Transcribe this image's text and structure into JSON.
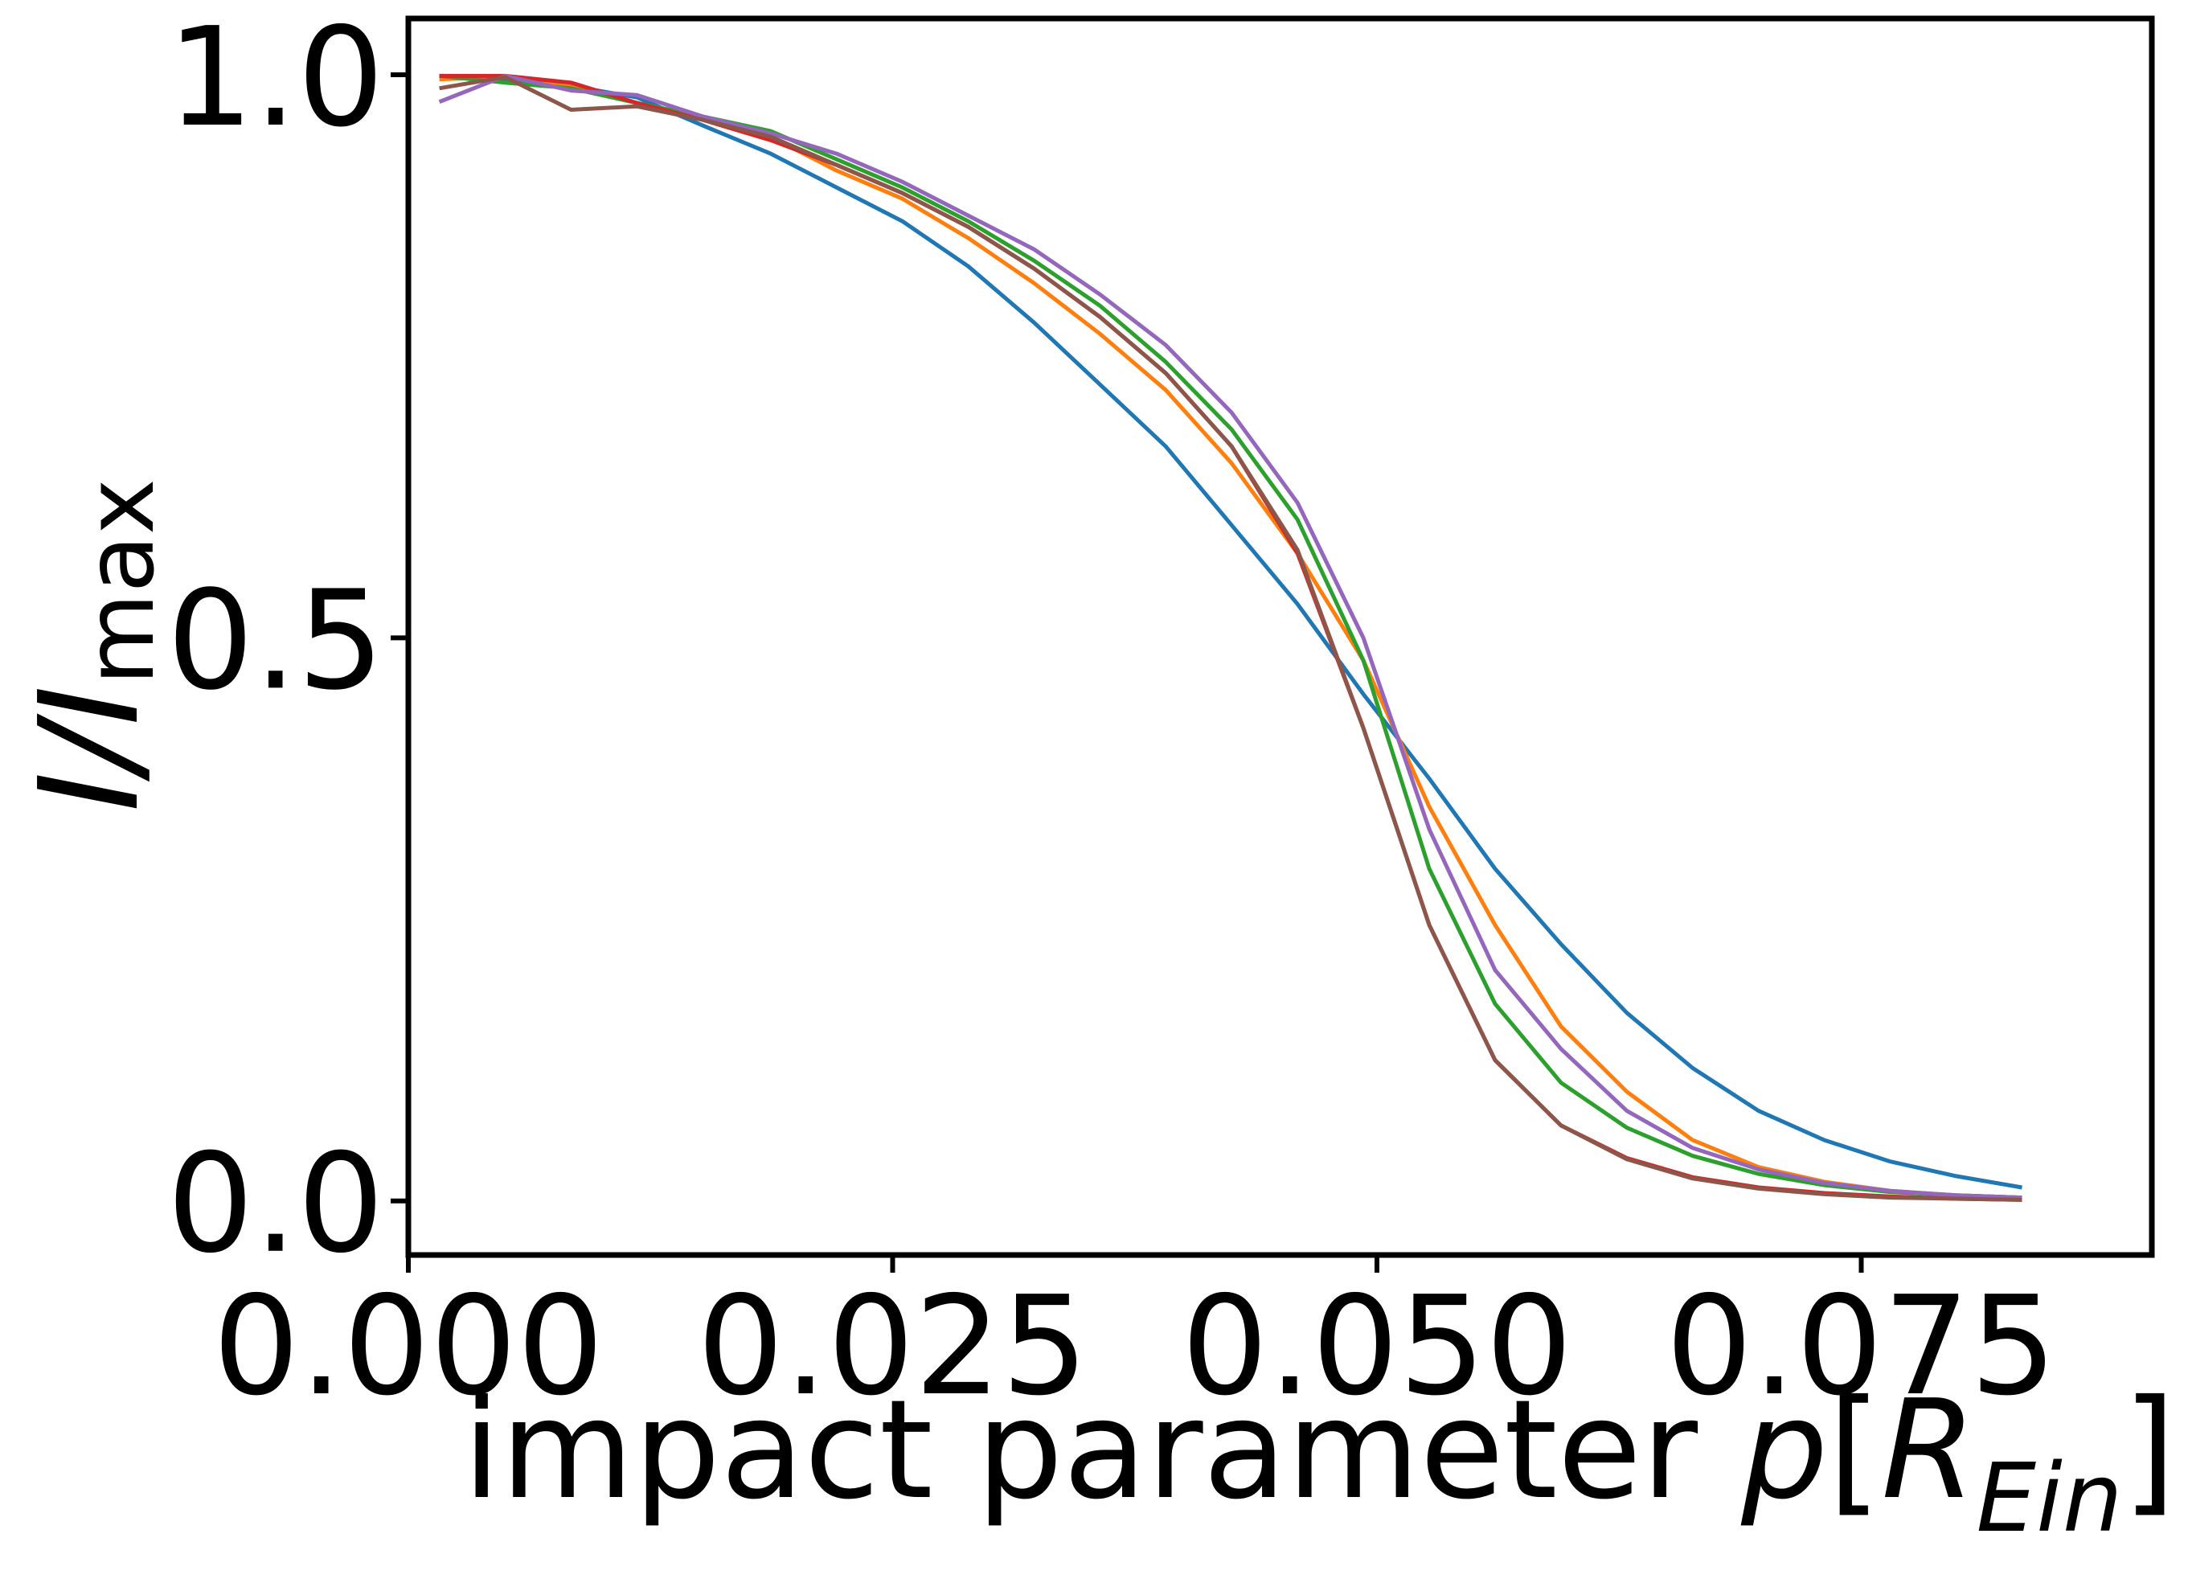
{
  "chart_data": {
    "type": "line",
    "title": "",
    "xlabel": {
      "prefix": "impact parameter ",
      "var": "p",
      "unit_open": "[",
      "unit_main": "R",
      "unit_sub": "Ein",
      "unit_close": "]"
    },
    "ylabel": {
      "main": "I/I",
      "sub": "max"
    },
    "xlim": [
      0.0,
      0.09
    ],
    "ylim": [
      -0.048,
      1.05
    ],
    "xticks": [
      0.0,
      0.025,
      0.05,
      0.075
    ],
    "xtick_labels": [
      "0.000",
      "0.025",
      "0.050",
      "0.075"
    ],
    "yticks": [
      0.0,
      0.5,
      1.0
    ],
    "ytick_labels": [
      "0.0",
      "0.5",
      "1.0"
    ],
    "grid": false,
    "legend": "none",
    "series": [
      {
        "color": "#1f77b4",
        "x": [
          0.0016,
          0.005,
          0.0084,
          0.0118,
          0.0152,
          0.0187,
          0.0221,
          0.0255,
          0.0289,
          0.0323,
          0.0357,
          0.0391,
          0.0425,
          0.0459,
          0.0493,
          0.0527,
          0.0561,
          0.0595,
          0.0629,
          0.0663,
          0.0697,
          0.0731,
          0.0765,
          0.0799,
          0.0833
        ],
        "y": [
          0.999,
          0.996,
          0.99,
          0.98,
          0.955,
          0.93,
          0.9,
          0.87,
          0.83,
          0.78,
          0.725,
          0.67,
          0.6,
          0.53,
          0.45,
          0.375,
          0.295,
          0.228,
          0.167,
          0.118,
          0.08,
          0.054,
          0.035,
          0.022,
          0.012
        ]
      },
      {
        "color": "#ff7f0e",
        "x": [
          0.0016,
          0.005,
          0.0084,
          0.0118,
          0.0152,
          0.0187,
          0.0221,
          0.0255,
          0.0289,
          0.0323,
          0.0357,
          0.0391,
          0.0425,
          0.0459,
          0.0493,
          0.0527,
          0.0561,
          0.0595,
          0.0629,
          0.0663,
          0.0697,
          0.0731,
          0.0765,
          0.0799,
          0.0833
        ],
        "y": [
          0.996,
          0.998,
          0.99,
          0.975,
          0.962,
          0.945,
          0.915,
          0.89,
          0.855,
          0.815,
          0.77,
          0.72,
          0.655,
          0.575,
          0.48,
          0.35,
          0.245,
          0.155,
          0.097,
          0.054,
          0.03,
          0.017,
          0.009,
          0.005,
          0.003
        ]
      },
      {
        "color": "#2ca02c",
        "x": [
          0.0016,
          0.005,
          0.0084,
          0.0118,
          0.0152,
          0.0187,
          0.0221,
          0.0255,
          0.0289,
          0.0323,
          0.0357,
          0.0391,
          0.0425,
          0.0459,
          0.0493,
          0.0527,
          0.0561,
          0.0595,
          0.0629,
          0.0663,
          0.0697,
          0.0731,
          0.0765,
          0.0799,
          0.0833
        ],
        "y": [
          0.999,
          0.993,
          0.988,
          0.975,
          0.963,
          0.95,
          0.925,
          0.9,
          0.87,
          0.835,
          0.795,
          0.745,
          0.685,
          0.605,
          0.48,
          0.295,
          0.175,
          0.105,
          0.065,
          0.04,
          0.024,
          0.014,
          0.008,
          0.005,
          0.003
        ]
      },
      {
        "color": "#d62728",
        "x": [
          0.0016,
          0.005,
          0.0084,
          0.0118,
          0.0152,
          0.0187,
          0.0221,
          0.0255,
          0.0289,
          0.0323,
          0.0357,
          0.0391,
          0.0425,
          0.0459,
          0.0493,
          0.0527,
          0.0561,
          0.0595,
          0.0629,
          0.0663,
          0.0697,
          0.0731,
          0.0765,
          0.0799,
          0.0833
        ],
        "y": [
          0.999,
          0.999,
          0.993,
          0.975,
          0.96,
          0.942,
          0.92,
          0.895,
          0.865,
          0.828,
          0.785,
          0.735,
          0.67,
          0.575,
          0.42,
          0.245,
          0.125,
          0.067,
          0.038,
          0.021,
          0.012,
          0.007,
          0.004,
          0.002,
          0.001
        ]
      },
      {
        "color": "#9467bd",
        "x": [
          0.0016,
          0.005,
          0.0084,
          0.0118,
          0.0152,
          0.0187,
          0.0221,
          0.0255,
          0.0289,
          0.0323,
          0.0357,
          0.0391,
          0.0425,
          0.0459,
          0.0493,
          0.0527,
          0.0561,
          0.0595,
          0.0629,
          0.0663,
          0.0697,
          0.0731,
          0.0765,
          0.0799,
          0.0833
        ],
        "y": [
          0.976,
          0.999,
          0.986,
          0.982,
          0.963,
          0.948,
          0.93,
          0.905,
          0.875,
          0.845,
          0.805,
          0.76,
          0.7,
          0.62,
          0.5,
          0.33,
          0.205,
          0.135,
          0.08,
          0.047,
          0.028,
          0.016,
          0.009,
          0.005,
          0.003
        ]
      },
      {
        "color": "#8c564b",
        "x": [
          0.0016,
          0.005,
          0.0084,
          0.0118,
          0.0152,
          0.0187,
          0.0221,
          0.0255,
          0.0289,
          0.0323,
          0.0357,
          0.0391,
          0.0425,
          0.0459,
          0.0493,
          0.0527,
          0.0561,
          0.0595,
          0.0629,
          0.0663,
          0.0697,
          0.0731,
          0.0765,
          0.0799,
          0.0833
        ],
        "y": [
          0.988,
          0.998,
          0.969,
          0.972,
          0.96,
          0.945,
          0.92,
          0.895,
          0.865,
          0.828,
          0.785,
          0.735,
          0.67,
          0.578,
          0.42,
          0.245,
          0.125,
          0.067,
          0.037,
          0.02,
          0.011,
          0.006,
          0.003,
          0.002,
          0.001
        ]
      }
    ]
  }
}
